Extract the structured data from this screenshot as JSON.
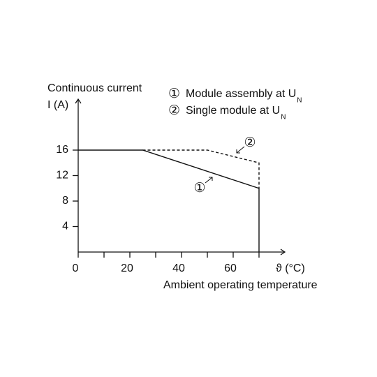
{
  "chart_data": {
    "type": "line",
    "y_label_lines": [
      "Continuous current",
      "I (A)"
    ],
    "x_label": "Ambient operating temperature",
    "x_unit_label": "ϑ (°C)",
    "xlim": [
      0,
      80
    ],
    "ylim": [
      0,
      24
    ],
    "xticks": [
      0,
      20,
      40,
      60
    ],
    "xminor_ticks": [
      10,
      30,
      50,
      70
    ],
    "yticks": [
      4,
      8,
      12,
      16
    ],
    "series": [
      {
        "name": "Module assembly at U",
        "name_subscript": "N",
        "marker": "①",
        "color": "#111111",
        "dash": false,
        "x": [
          0,
          25,
          70,
          70
        ],
        "values": [
          16,
          16,
          10,
          0
        ]
      },
      {
        "name": "Single module at U",
        "name_subscript": "N",
        "marker": "②",
        "color": "#111111",
        "dash": true,
        "x": [
          25,
          50,
          70,
          70
        ],
        "values": [
          16,
          16,
          14,
          10
        ]
      }
    ]
  }
}
